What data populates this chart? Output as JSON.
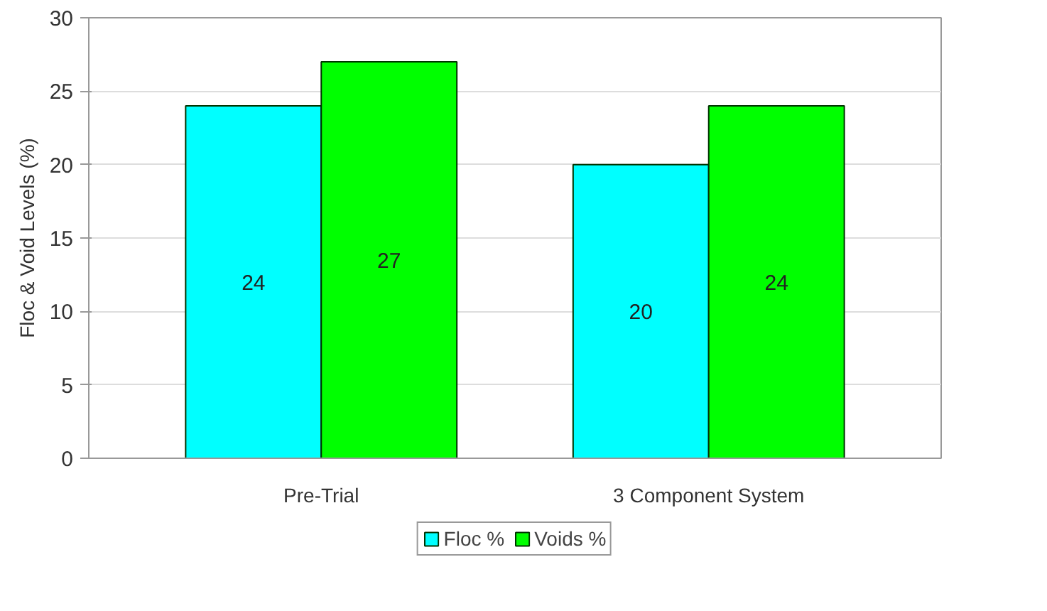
{
  "chart_data": {
    "type": "bar",
    "ylabel": "Floc & Void Levels (%)",
    "categories": [
      "Pre-Trial",
      "3 Component System"
    ],
    "series": [
      {
        "name": "Floc %",
        "color": "#00ffff",
        "values": [
          24,
          20
        ]
      },
      {
        "name": "Voids %",
        "color": "#00ff00",
        "values": [
          27,
          24
        ]
      }
    ],
    "ylim": [
      0,
      30
    ],
    "yticks": [
      0,
      5,
      10,
      15,
      20,
      25,
      30
    ],
    "grid": "y",
    "legend": "bottom",
    "data_labels": true
  }
}
